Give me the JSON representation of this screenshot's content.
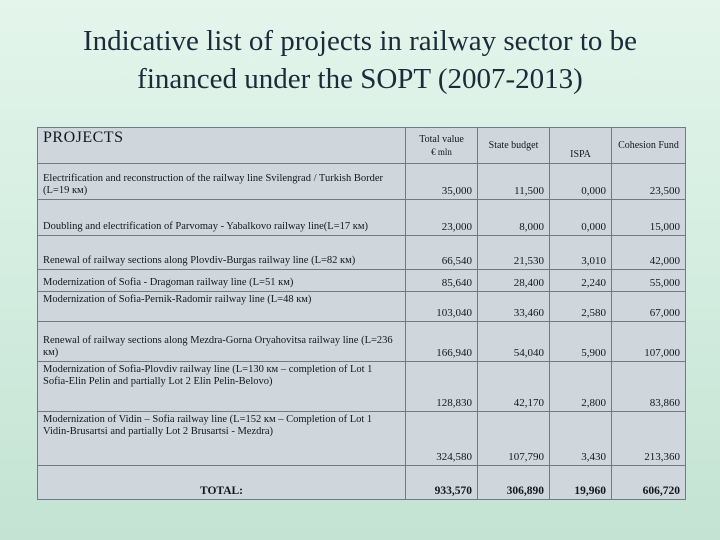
{
  "title": {
    "line1": "Indicative list of projects in railway sector to be",
    "line2": "financed under the SOPT (2007-2013)"
  },
  "table": {
    "headers": {
      "projects": "PROJECTS",
      "total_value": "Total value",
      "total_value_unit": "€ mln",
      "state_budget": "State budget",
      "ispa": "ISPA",
      "cohesion_fund": "Cohesion Fund"
    },
    "rows": [
      {
        "name": "Electrification and reconstruction of the railway line Svilengrad / Turkish Border (L=19 км)",
        "total": "35,000",
        "state": "11,500",
        "ispa": "0,000",
        "cohesion": "23,500"
      },
      {
        "name": "Doubling and electrification of Parvomay - Yabalkovo railway line(L=17 км)",
        "total": "23,000",
        "state": "8,000",
        "ispa": "0,000",
        "cohesion": "15,000"
      },
      {
        "name": "Renewal of railway sections along Plovdiv-Burgas railway line (L=82 км)",
        "total": "66,540",
        "state": "21,530",
        "ispa": "3,010",
        "cohesion": "42,000"
      },
      {
        "name": "Modernization of Sofia - Dragoman railway line (L=51 км)",
        "total": "85,640",
        "state": "28,400",
        "ispa": "2,240",
        "cohesion": "55,000"
      },
      {
        "name": "Modernization of Sofia-Pernik-Radomir railway line (L=48 км)",
        "total": "103,040",
        "state": "33,460",
        "ispa": "2,580",
        "cohesion": "67,000"
      },
      {
        "name": "Renewal of railway sections along Mezdra-Gorna Oryahovitsa railway line (L=236 км)",
        "total": "166,940",
        "state": "54,040",
        "ispa": "5,900",
        "cohesion": "107,000"
      },
      {
        "name": "Modernization of Sofia-Plovdiv railway line (L=130 км – completion of Lot 1 Sofia-Elin Pelin and partially Lot 2 Elin Pelin-Belovo)",
        "total": "128,830",
        "state": "42,170",
        "ispa": "2,800",
        "cohesion": "83,860"
      },
      {
        "name": "Modernization of Vidin – Sofia railway line (L=152 км – Completion of Lot 1 Vidin-Brusartsi and partially Lot 2 Brusartsi - Mezdra)",
        "total": "324,580",
        "state": "107,790",
        "ispa": "3,430",
        "cohesion": "213,360"
      }
    ],
    "total": {
      "label": "TOTAL:",
      "total": "933,570",
      "state": "306,890",
      "ispa": "19,960",
      "cohesion": "606,720"
    }
  }
}
